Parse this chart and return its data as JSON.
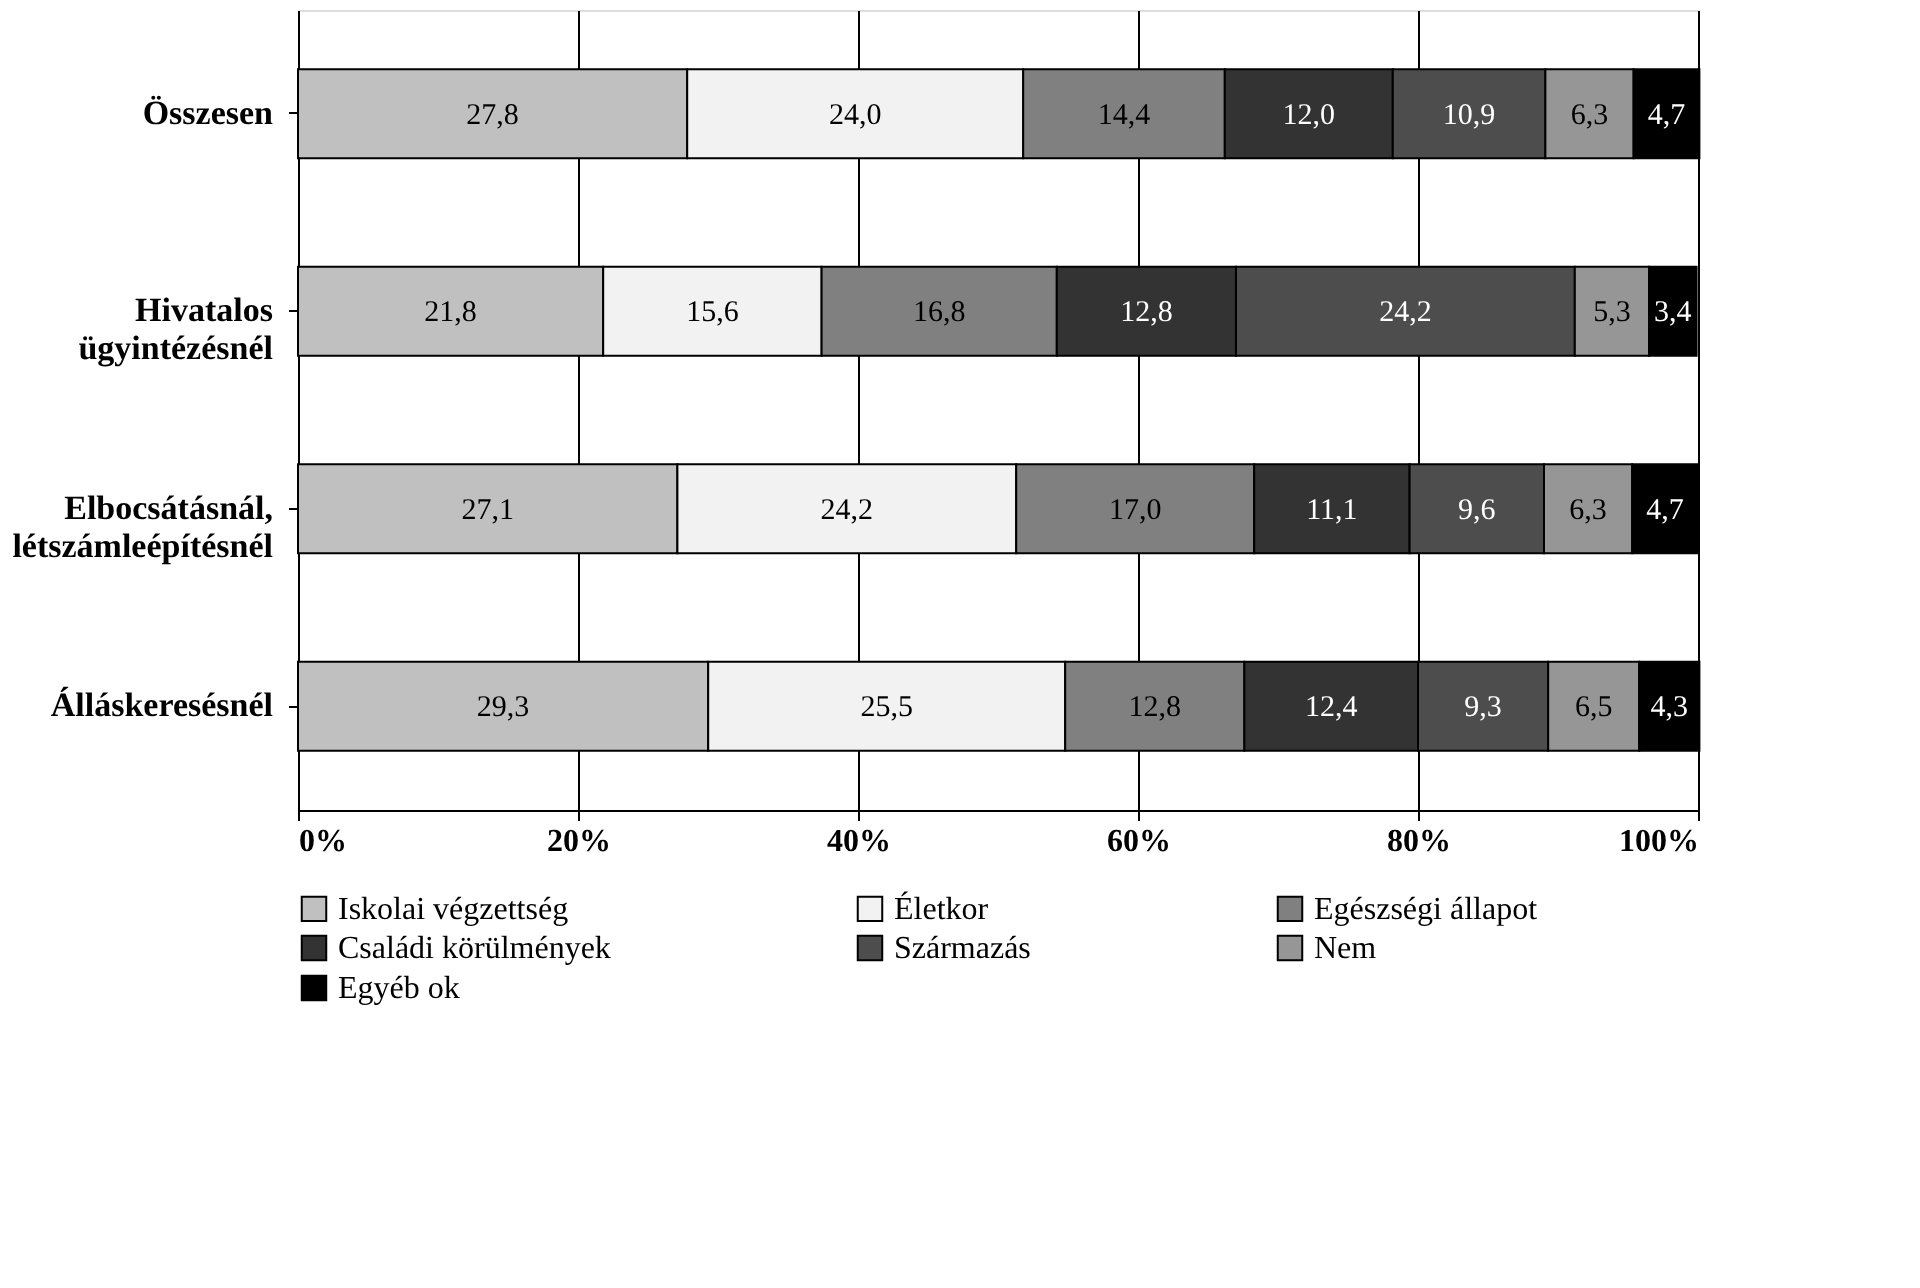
{
  "chart_data": {
    "type": "bar",
    "orientation": "horizontal",
    "stacked": true,
    "categories": [
      "Összesen",
      "Hivatalos ügyintézésnél",
      "Elbocsátásnál, létszámleépítésnél",
      "Álláskeresésnél"
    ],
    "series": [
      {
        "name": "Iskolai végzettség",
        "color": "#c0c0c0",
        "values": [
          27.8,
          21.8,
          27.1,
          29.3
        ],
        "value_labels": [
          "27,8",
          "21,8",
          "27,1",
          "29,3"
        ]
      },
      {
        "name": "Életkor",
        "color": "#f2f2f2",
        "values": [
          24.0,
          15.6,
          24.2,
          25.5
        ],
        "value_labels": [
          "24,0",
          "15,6",
          "24,2",
          "25,5"
        ]
      },
      {
        "name": "Egészségi állapot",
        "color": "#808080",
        "values": [
          14.4,
          16.8,
          17.0,
          12.8
        ],
        "value_labels": [
          "14,4",
          "16,8",
          "17,0",
          "12,8"
        ]
      },
      {
        "name": "Családi körülmények",
        "color": "#333333",
        "values": [
          12.0,
          12.8,
          11.1,
          12.4
        ],
        "value_labels": [
          "12,0",
          "12,8",
          "11,1",
          "12,4"
        ]
      },
      {
        "name": "Származás",
        "color": "#4d4d4d",
        "values": [
          10.9,
          24.2,
          9.6,
          9.3
        ],
        "value_labels": [
          "10,9",
          "24,2",
          "9,6",
          "9,3"
        ]
      },
      {
        "name": "Nem",
        "color": "#969696",
        "values": [
          6.3,
          5.3,
          6.3,
          6.5
        ],
        "value_labels": [
          "6,3",
          "5,3",
          "6,3",
          "6,5"
        ]
      },
      {
        "name": "Egyéb ok",
        "color": "#000000",
        "values": [
          4.7,
          3.4,
          4.7,
          4.3
        ],
        "value_labels": [
          "4,7",
          "3,4",
          "4,7",
          "4,3"
        ]
      }
    ],
    "xlim": [
      0,
      100
    ],
    "xticks": [
      {
        "value": 0,
        "label": "0%"
      },
      {
        "value": 20,
        "label": "20%"
      },
      {
        "value": 40,
        "label": "40%"
      },
      {
        "value": 60,
        "label": "60%"
      },
      {
        "value": 80,
        "label": "80%"
      },
      {
        "value": 100,
        "label": "100%"
      }
    ],
    "grid": "x",
    "legend": "bottom"
  }
}
